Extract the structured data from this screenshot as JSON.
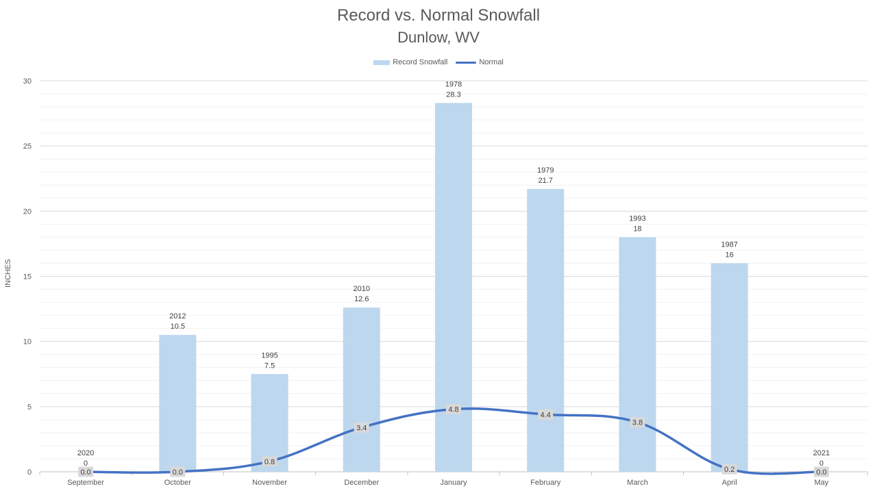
{
  "chart_data": {
    "type": "bar",
    "title": "Record vs. Normal Snowfall",
    "subtitle": "Dunlow, WV",
    "ylabel": "INCHES",
    "ylim": [
      0,
      30
    ],
    "ytick_step": 5,
    "minor_grid_step": 1,
    "grid": true,
    "legend_position": "top",
    "categories": [
      "September",
      "October",
      "November",
      "December",
      "January",
      "February",
      "March",
      "April",
      "May"
    ],
    "yticks": [
      "0",
      "5",
      "10",
      "15",
      "20",
      "25",
      "30"
    ],
    "series": [
      {
        "name": "Record Snowfall",
        "kind": "bar",
        "color": "#bdd7ee",
        "values": [
          0,
          10.5,
          7.5,
          12.6,
          28.3,
          21.7,
          18,
          16,
          0
        ],
        "value_labels": [
          "0",
          "10.5",
          "7.5",
          "12.6",
          "28.3",
          "21.7",
          "18",
          "16",
          "0"
        ],
        "year_labels": [
          "2020",
          "2012",
          "1995",
          "2010",
          "1978",
          "1979",
          "1993",
          "1987",
          "2021"
        ]
      },
      {
        "name": "Normal",
        "kind": "line",
        "color": "#4472c4",
        "values": [
          0.0,
          0.0,
          0.8,
          3.4,
          4.8,
          4.4,
          3.8,
          0.2,
          0.0
        ],
        "value_labels": [
          "0.0",
          "0.0",
          "0.8",
          "3.4",
          "4.8",
          "4.4",
          "3.8",
          "0.2",
          "0.0"
        ]
      }
    ]
  }
}
